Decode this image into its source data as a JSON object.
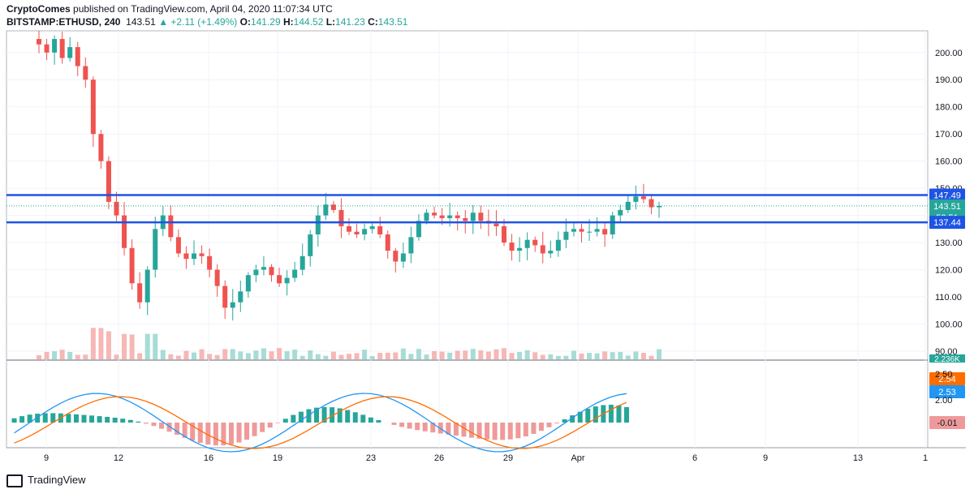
{
  "header": {
    "author": "CryptoComes",
    "published_text": " published on TradingView.com, April 04, 2020 11:07:34 UTC",
    "symbol": "BITSTAMP:ETHUSD, 240",
    "last": "143.51",
    "change_arrow": "▲",
    "change": "+2.11 (+1.49%)",
    "o_label": "O:",
    "o": "141.29",
    "h_label": "H:",
    "h": "144.52",
    "l_label": "L:",
    "l": "141.23",
    "c_label": "C:",
    "c": "143.51"
  },
  "footer": {
    "brand": "TradingView"
  },
  "colors": {
    "up": "#26a69a",
    "down": "#ef5350",
    "level_line": "#1e53e5",
    "macd": "#2196f3",
    "signal": "#ff6d00"
  },
  "chart_data": [
    {
      "type": "candlestick",
      "title": "BITSTAMP:ETHUSD, 240",
      "y_ticks": [
        "200.00",
        "190.00",
        "180.00",
        "170.00",
        "160.00",
        "150.00",
        "140.00",
        "130.00",
        "120.00",
        "110.00",
        "100.00",
        "90.00"
      ],
      "x_ticks": [
        "9",
        "12",
        "16",
        "19",
        "23",
        "26",
        "29",
        "Apr",
        "6",
        "9",
        "13",
        "1"
      ],
      "ylim": [
        87,
        208
      ],
      "horizontal_levels": [
        147.49,
        137.44
      ],
      "price_labels": [
        {
          "text": "147.49",
          "value": 147.49,
          "color": "#1e53e5"
        },
        {
          "text": "143.51",
          "value": 143.51,
          "color": "#26a69a"
        },
        {
          "text": "52:51",
          "value": 139.3,
          "color": "#26a69a"
        },
        {
          "text": "137.44",
          "value": 137.44,
          "color": "#1e53e5"
        }
      ],
      "volume_label": "2.236K",
      "close_series": [
        203,
        200,
        205,
        198,
        202,
        195,
        190,
        170,
        160,
        145,
        140,
        128,
        115,
        108,
        120,
        135,
        140,
        132,
        126,
        124,
        126,
        125,
        120,
        114,
        106,
        108,
        112,
        118,
        120,
        121,
        118,
        115,
        117,
        120,
        125,
        133,
        140,
        144,
        142,
        136,
        134,
        133,
        135,
        136,
        133,
        127,
        123,
        126,
        132,
        138,
        141,
        140,
        139,
        140,
        139,
        138,
        141,
        138,
        137,
        136,
        130,
        127,
        128,
        131,
        129,
        126,
        127,
        131,
        134,
        135,
        134,
        134,
        135,
        133,
        140,
        142,
        145,
        147,
        146,
        143,
        143.5
      ],
      "close_note": "approximate closes"
    },
    {
      "type": "macd",
      "labels": [
        {
          "text": "2.54",
          "value": 2.54,
          "color": "#ff6d00"
        },
        {
          "text": "2.53",
          "value": 2.53,
          "color": "#2196f3"
        },
        {
          "text": "-0.01",
          "value": -0.01,
          "color": "#ef9a9a"
        }
      ],
      "y_ticks": [
        "2.50",
        "2.00"
      ]
    }
  ]
}
